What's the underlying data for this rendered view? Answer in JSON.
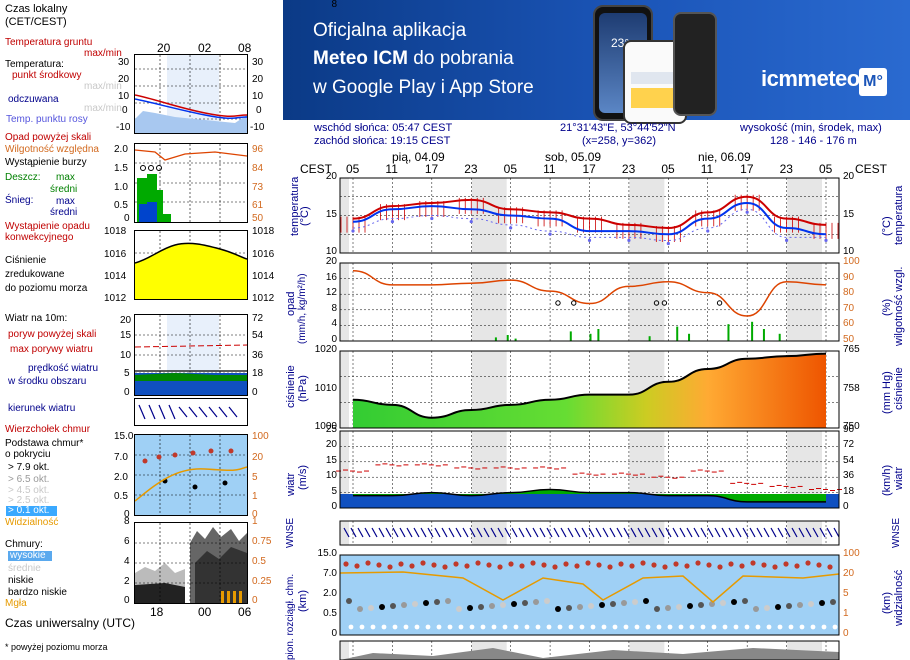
{
  "legend": {
    "time_local": "Czas lokalny",
    "time_zone": "(CET/CEST)",
    "time_utc": "Czas uniwersalny (UTC)",
    "footnote": "* powyżej poziomu morza",
    "temp_ground": "Temperatura gruntu",
    "temp_ground_mm": "max/min",
    "temperature": "Temperatura:",
    "temp_mid": "punkt środkowy",
    "temp_mid_mm": "max/min",
    "temp_feels": "odczuwana",
    "temp_feels_mm": "max/min",
    "temp_dew": "Temp. punktu rosy",
    "precip_above": "Opad powyżej skali",
    "humidity": "Wilgotność względna",
    "storm": "Wystąpienie burzy",
    "rain": "Deszcz:",
    "rain_max": "max",
    "rain_mid": "średni",
    "snow": "Śnieg:",
    "snow_max": "max",
    "snow_mid": "średni",
    "precip_occ1": "Wystąpienie opadu",
    "precip_occ2": "konwekcyjnego",
    "pressure1": "Ciśnienie",
    "pressure2": "zredukowane",
    "pressure3": "do poziomu morza",
    "wind_at": "Wiatr na 10m:",
    "gust_above": "poryw powyżej skali",
    "gust_max": "max porywy wiatru",
    "wind_speed": "prędkość wiatru",
    "wind_mid": "w środku obszaru",
    "wind_dir": "kierunek wiatru",
    "cloud_top": "Wierzchołek chmur",
    "cloud_base1": "Podstawa chmur*",
    "cloud_base2": "o pokryciu",
    "okt79": "> 7.9 okt.",
    "okt65": "> 6.5 okt.",
    "okt45": "> 4.5 okt.",
    "okt25": "> 2.5 okt.",
    "okt01": "> 0.1 okt.",
    "visibility": "Widzialność",
    "clouds": "Chmury:",
    "cl_high": "wysokie",
    "cl_mid": "średnie",
    "cl_low": "niskie",
    "cl_vlow": "bardzo niskie",
    "fog": "Mgła",
    "top_ticks": [
      "20",
      "02",
      "08"
    ],
    "bottom_ticks": [
      "18",
      "00",
      "06"
    ],
    "y_temp_l": [
      "30",
      "20",
      "10",
      "0",
      "-10"
    ],
    "y_temp_r": [
      "30",
      "20",
      "10",
      "0",
      "-10"
    ],
    "y_prec_l": [
      "2.0",
      "1.5",
      "1.0",
      "0.5",
      "0"
    ],
    "y_prec_r": [
      "96",
      "84",
      "73",
      "61",
      "50"
    ],
    "y_pres_l": [
      "1018",
      "1016",
      "1014",
      "1012"
    ],
    "y_pres_r": [
      "1018",
      "1016",
      "1014",
      "1012"
    ],
    "y_wind_l": [
      "20",
      "15",
      "10",
      "5",
      "0"
    ],
    "y_wind_r": [
      "72",
      "54",
      "36",
      "18",
      "0"
    ],
    "y_cloud_l": [
      "15.0",
      "7.0",
      "2.0",
      "0.5",
      "0"
    ],
    "y_cloud_r": [
      "100",
      "20",
      "5",
      "1",
      "0"
    ],
    "y_cl_l": [
      "8",
      "6",
      "4",
      "2",
      "0"
    ],
    "y_cl_r": [
      "1",
      "0.75",
      "0.5",
      "0.25",
      "0"
    ]
  },
  "banner": {
    "line1": "Oficjalna aplikacja",
    "line2_bold": "Meteo ICM",
    "line2_rest": " do pobrania",
    "line3": "w Google Play i App Store",
    "brand": "icmmeteo",
    "brand_badge": "M°",
    "phone_temp": "23°"
  },
  "info": {
    "sunrise": "wschód słońca: 05:47 CEST",
    "sunset": "zachód słońca: 19:15 CEST",
    "coords": "21°31'43\"E, 53°44'52\"N",
    "grid": "(x=258, y=362)",
    "elev_label": "wysokość (min, środek, max)",
    "elev_value": "128 - 146 - 176 m"
  },
  "axis": {
    "tz": "CEST",
    "days": [
      "pią, 04.09",
      "sob, 05.09",
      "nie, 06.09"
    ],
    "hours": [
      "05",
      "11",
      "17",
      "23",
      "05",
      "11",
      "17",
      "23",
      "05",
      "11",
      "17",
      "23",
      "05"
    ]
  },
  "panels": {
    "temp": {
      "title": "temperatura",
      "unit": "(°C)",
      "yl": [
        "20",
        "15",
        "10"
      ],
      "yr": [
        "20",
        "15",
        "10"
      ]
    },
    "prec": {
      "title": "opad",
      "unit": "(mm/h, kg/m²/h)",
      "yl": [
        "20",
        "16",
        "12",
        "8",
        "4",
        "0"
      ],
      "title_r": "wilgotność wzgl.",
      "unit_r": "(%)",
      "yr": [
        "100",
        "90",
        "80",
        "70",
        "60",
        "50"
      ]
    },
    "pres": {
      "title": "ciśnienie",
      "unit": "(hPa)",
      "yl": [
        "1020",
        "1010",
        "1000"
      ],
      "title_r": "ciśnienie",
      "unit_r": "(mm Hg)",
      "yr": [
        "765",
        "758",
        "750"
      ]
    },
    "wind": {
      "title": "wiatr",
      "unit": "(m/s)",
      "yl": [
        "25",
        "20",
        "15",
        "10",
        "5",
        "0"
      ],
      "unit_r": "(km/h)",
      "title_r": "wiatr",
      "yr": [
        "90",
        "72",
        "54",
        "36",
        "18",
        "0"
      ]
    },
    "dir": {
      "sym": "WNSE"
    },
    "cloud": {
      "title": "pion. rozciągł. chm.",
      "unit": "(km)",
      "yl": [
        "15.0",
        "7.0",
        "2.0",
        "0.5",
        "0"
      ],
      "title_r": "widzialność",
      "unit_r": "(km)",
      "yr": [
        "100",
        "20",
        "5",
        "1",
        "0"
      ]
    },
    "bottom": {
      "yl": [
        "8"
      ]
    }
  },
  "chart_data": [
    {
      "type": "line",
      "title": "temperatura",
      "ylabel": "temperatura (°C)",
      "ylim": [
        8,
        20
      ],
      "x": [
        "pią 05",
        "pią 11",
        "pią 17",
        "pią 23",
        "sob 05",
        "sob 11",
        "sob 17",
        "sob 23",
        "nie 05",
        "nie 11",
        "nie 17",
        "nie 23",
        "pon 05"
      ],
      "series": [
        {
          "values": [
            13.5,
            15.5,
            16,
            16.5,
            15,
            14.5,
            13.5,
            12.5,
            12,
            14.5,
            17,
            13.5,
            12.5
          ],
          "color": "#cc0000"
        },
        {
          "values": [
            13,
            15,
            15.5,
            15,
            14,
            13.5,
            11.5,
            11.5,
            11,
            13.5,
            16,
            12,
            11
          ],
          "color": "#0033ee"
        },
        {
          "values": [
            12,
            13.5,
            14,
            13.5,
            12.5,
            11.5,
            10.5,
            10.5,
            10,
            12,
            15,
            10.5,
            10.5
          ],
          "color": "#6666ee"
        }
      ]
    },
    {
      "type": "line",
      "title": "opad / wilgotność wzgl.",
      "ylabel": "wilgotność wzgl. (%)",
      "ylim": [
        50,
        100
      ],
      "x": [
        "pią 05",
        "pią 11",
        "pią 17",
        "pią 23",
        "sob 05",
        "sob 11",
        "sob 17",
        "sob 23",
        "nie 05",
        "nie 11",
        "nie 17",
        "nie 23",
        "pon 05"
      ],
      "series": [
        {
          "values": [
            95,
            86,
            86,
            87,
            89,
            82,
            74,
            85,
            88,
            81,
            66,
            88,
            86
          ],
          "color": "#dd4400"
        }
      ]
    },
    {
      "type": "area",
      "title": "ciśnienie",
      "ylabel": "ciśnienie (hPa)",
      "ylim": [
        995,
        1025
      ],
      "x": [
        "pią 05",
        "pią 11",
        "pią 17",
        "pią 23",
        "sob 05",
        "sob 11",
        "sob 17",
        "sob 23",
        "nie 05",
        "nie 11",
        "nie 17",
        "nie 23",
        "pon 05"
      ],
      "series": [
        {
          "values": [
            1006,
            1004,
            999,
            1002,
            1004,
            1006,
            1008,
            1008,
            1013,
            1018,
            1022,
            1023,
            1024
          ],
          "color": "#000000"
        }
      ]
    },
    {
      "type": "area",
      "title": "wiatr",
      "ylabel": "wiatr (m/s)",
      "ylim": [
        0,
        25
      ],
      "x": [
        "pią 05",
        "pią 11",
        "pią 17",
        "pią 23",
        "sob 05",
        "sob 11",
        "sob 17",
        "sob 23",
        "nie 05",
        "nie 11",
        "nie 17",
        "nie 23",
        "pon 05"
      ],
      "series": [
        {
          "values": [
            4,
            4,
            5,
            4,
            5,
            6,
            5,
            5,
            4,
            4,
            2,
            2,
            2
          ],
          "color": "#008800"
        },
        {
          "values": [
            12,
            14,
            14,
            13,
            13,
            13,
            11,
            11,
            10,
            12,
            8,
            7,
            6
          ],
          "color": "#cc0000"
        }
      ]
    }
  ]
}
